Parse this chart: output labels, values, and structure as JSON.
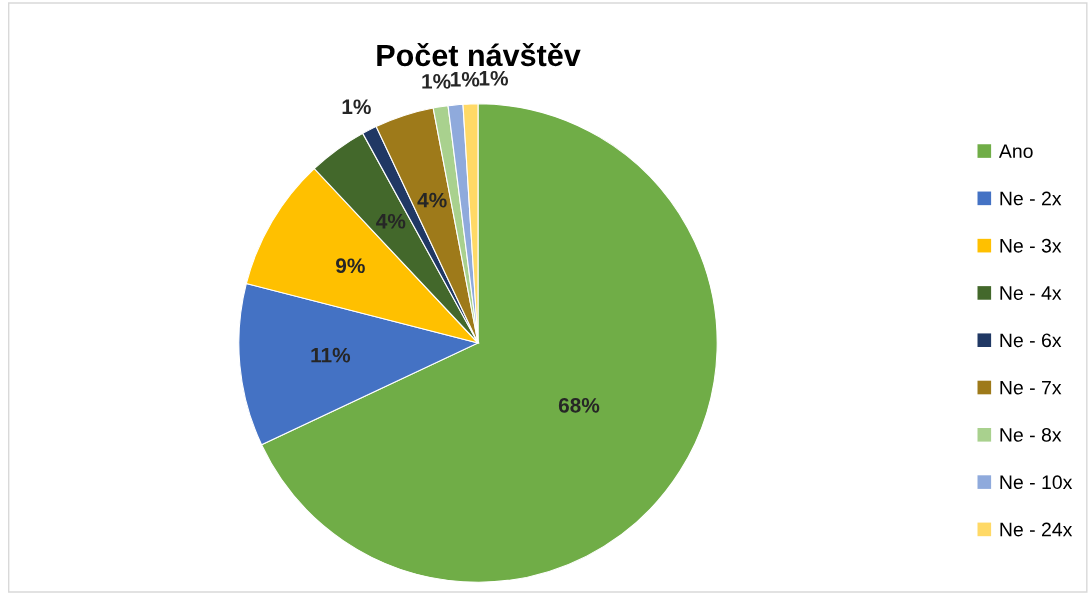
{
  "chart_data": {
    "type": "pie",
    "title": "Počet návštěv",
    "categories": [
      "Ano",
      "Ne - 2x",
      "Ne - 3x",
      "Ne - 4x",
      "Ne - 6x",
      "Ne - 7x",
      "Ne - 8x",
      "Ne - 10x",
      "Ne - 24x"
    ],
    "values": [
      68,
      11,
      9,
      4,
      1,
      4,
      1,
      1,
      1
    ],
    "value_labels": [
      "68%",
      "11%",
      "9%",
      "4%",
      "1%",
      "4%",
      "1%",
      "1%",
      "1%"
    ],
    "colors": [
      "#70ad47",
      "#4472c4",
      "#ffc000",
      "#43682b",
      "#203864",
      "#9e7a1a",
      "#a9d18e",
      "#8faadc",
      "#ffd966"
    ],
    "legend": "right"
  }
}
